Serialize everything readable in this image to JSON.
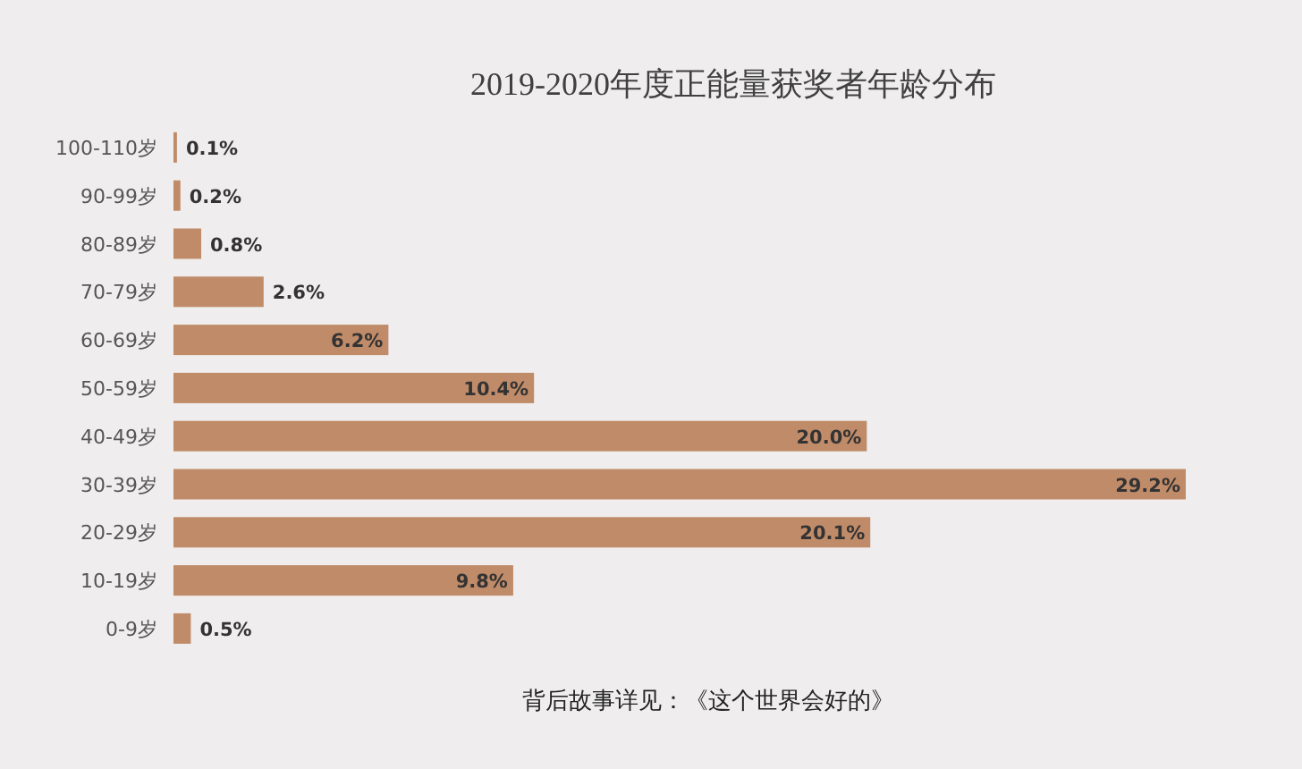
{
  "chart_data": {
    "type": "bar",
    "orientation": "horizontal",
    "title": "2019-2020年度正能量获奖者年龄分布",
    "categories": [
      "100-110岁",
      "90-99岁",
      "80-89岁",
      "70-79岁",
      "60-69岁",
      "50-59岁",
      "40-49岁",
      "30-39岁",
      "20-29岁",
      "10-19岁",
      "0-9岁"
    ],
    "values": [
      0.1,
      0.2,
      0.8,
      2.6,
      6.2,
      10.4,
      20.0,
      29.2,
      20.1,
      9.8,
      0.5
    ],
    "value_labels": [
      "0.1%",
      "0.2%",
      "0.8%",
      "2.6%",
      "6.2%",
      "10.4%",
      "20.0%",
      "29.2%",
      "20.1%",
      "9.8%",
      "0.5%"
    ],
    "color": "#c08b69",
    "annotations": [
      "背后故事详见：《这个世界会好的》"
    ]
  }
}
